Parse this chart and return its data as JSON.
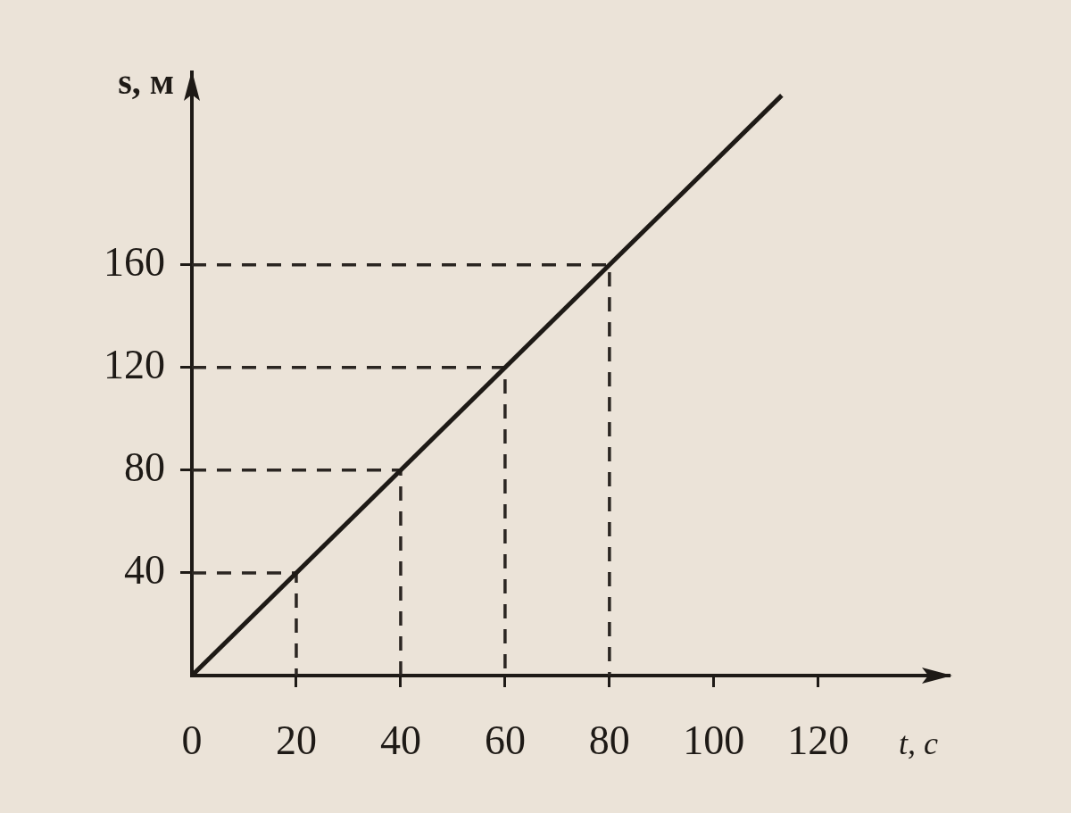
{
  "chart_data": {
    "type": "line",
    "xlabel": "t, с",
    "ylabel": "s, м",
    "xlim": [
      0,
      145
    ],
    "ylim": [
      0,
      235
    ],
    "xticks": [
      0,
      20,
      40,
      60,
      80,
      100,
      120
    ],
    "yticks": [
      {
        "value": 0,
        "label": null
      },
      40,
      80,
      120,
      160
    ],
    "grid": false,
    "legend": false,
    "marker": "none",
    "series": [
      {
        "color": "#1e1a16",
        "x": [
          0,
          113
        ],
        "values": [
          0,
          226
        ]
      },
      {
        "color": "#2b2622",
        "line_style": "dashed",
        "x": [
          0,
          20,
          20
        ],
        "values": [
          40,
          40,
          0
        ]
      },
      {
        "color": "#2b2622",
        "line_style": "dashed",
        "x": [
          0,
          40,
          40
        ],
        "values": [
          80,
          80,
          0
        ]
      },
      {
        "color": "#2b2622",
        "line_style": "dashed",
        "x": [
          0,
          60,
          60
        ],
        "values": [
          120,
          120,
          0
        ]
      },
      {
        "color": "#2b2622",
        "line_style": "dashed",
        "x": [
          0,
          80,
          80
        ],
        "values": [
          160,
          160,
          0
        ]
      }
    ]
  }
}
